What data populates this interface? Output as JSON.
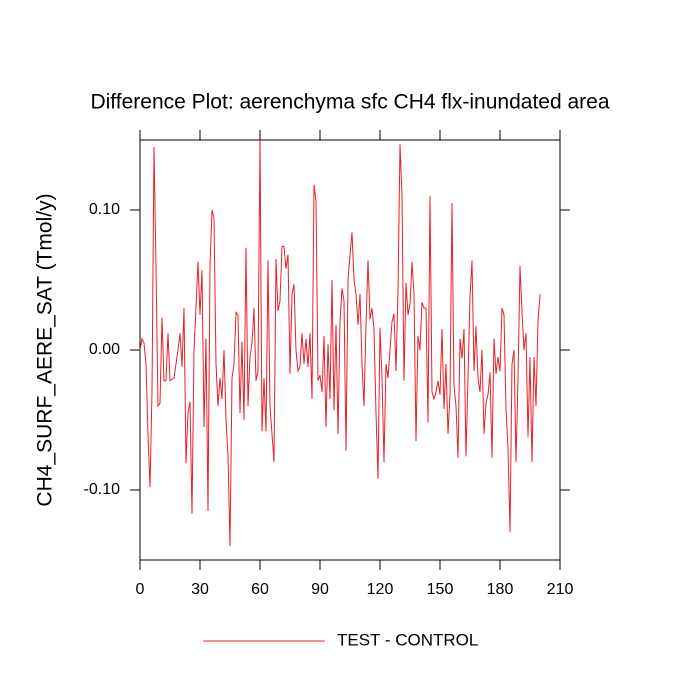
{
  "chart_data": {
    "type": "line",
    "title": "Difference Plot: aerenchyma sfc CH4 flx-inundated area",
    "y_label": "CH4_SURF_AERE_SAT  (Tmol/y)",
    "x": [
      0,
      1,
      2,
      3,
      4,
      5,
      6,
      7,
      8,
      9,
      10,
      11,
      12,
      13,
      14,
      15,
      16,
      17,
      18,
      19,
      20,
      21,
      22,
      23,
      24,
      25,
      26,
      27,
      28,
      29,
      30,
      31,
      32,
      33,
      34,
      35,
      36,
      37,
      38,
      39,
      40,
      41,
      42,
      43,
      44,
      45,
      46,
      47,
      48,
      49,
      50,
      51,
      52,
      53,
      54,
      55,
      56,
      57,
      58,
      59,
      60,
      61,
      62,
      63,
      64,
      65,
      66,
      67,
      68,
      69,
      70,
      71,
      72,
      73,
      74,
      75,
      76,
      77,
      78,
      79,
      80,
      81,
      82,
      83,
      84,
      85,
      86,
      87,
      88,
      89,
      90,
      91,
      92,
      93,
      94,
      95,
      96,
      97,
      98,
      99,
      100,
      101,
      102,
      103,
      104,
      105,
      106,
      107,
      108,
      109,
      110,
      111,
      112,
      113,
      114,
      115,
      116,
      117,
      118,
      119,
      120,
      121,
      122,
      123,
      124,
      125,
      126,
      127,
      128,
      129,
      130,
      131,
      132,
      133,
      134,
      135,
      136,
      137,
      138,
      139,
      140,
      141,
      142,
      143,
      144,
      145,
      146,
      147,
      148,
      149,
      150,
      151,
      152,
      153,
      154,
      155,
      156,
      157,
      158,
      159,
      160,
      161,
      162,
      163,
      164,
      165,
      166,
      167,
      168,
      169,
      170,
      171,
      172,
      173,
      174,
      175,
      176,
      177,
      178,
      179,
      180,
      181,
      182,
      183,
      184,
      185,
      186,
      187,
      188,
      189,
      190,
      191,
      192,
      193,
      194,
      195,
      196,
      197,
      198,
      199,
      200
    ],
    "series": [
      {
        "name": "TEST - CONTROL",
        "color": "#e8202a",
        "values": [
          0.0,
          0.008,
          0.005,
          -0.01,
          -0.06,
          -0.098,
          -0.03,
          0.145,
          0.06,
          -0.04,
          -0.038,
          0.023,
          -0.022,
          -0.022,
          0.012,
          -0.022,
          -0.021,
          -0.02,
          -0.01,
          0.0,
          0.012,
          -0.012,
          0.03,
          -0.081,
          -0.045,
          -0.037,
          -0.117,
          0.0,
          0.03,
          0.063,
          0.025,
          0.057,
          -0.055,
          0.008,
          -0.115,
          0.06,
          0.1,
          0.094,
          -0.01,
          -0.04,
          -0.02,
          -0.035,
          0.0,
          -0.05,
          -0.075,
          -0.14,
          -0.02,
          -0.01,
          0.027,
          0.025,
          -0.045,
          0.006,
          -0.05,
          0.073,
          -0.04,
          -0.005,
          0.005,
          0.03,
          -0.022,
          -0.015,
          0.15,
          -0.058,
          -0.02,
          -0.058,
          0.064,
          -0.04,
          -0.06,
          -0.08,
          0.065,
          0.028,
          0.035,
          0.074,
          0.074,
          0.058,
          0.068,
          -0.017,
          0.04,
          0.047,
          0.0,
          -0.015,
          -0.012,
          0.012,
          -0.01,
          0.008,
          -0.012,
          0.012,
          -0.035,
          0.118,
          0.106,
          -0.022,
          -0.018,
          -0.03,
          0.01,
          -0.055,
          0.004,
          -0.035,
          0.05,
          -0.043,
          0.018,
          -0.06,
          0.02,
          0.044,
          0.035,
          -0.072,
          0.05,
          0.068,
          0.084,
          0.05,
          0.04,
          0.018,
          0.04,
          -0.01,
          -0.04,
          0.018,
          0.064,
          0.022,
          0.03,
          0.015,
          -0.045,
          -0.092,
          0.016,
          -0.02,
          -0.08,
          -0.01,
          -0.02,
          0.0,
          0.02,
          0.026,
          -0.015,
          0.042,
          0.147,
          0.11,
          -0.022,
          0.048,
          0.025,
          0.033,
          0.063,
          0.04,
          -0.065,
          0.01,
          0.0,
          0.034,
          0.03,
          0.03,
          -0.052,
          0.11,
          -0.03,
          -0.035,
          -0.03,
          -0.022,
          -0.032,
          0.015,
          -0.042,
          -0.01,
          -0.06,
          -0.032,
          0.105,
          -0.025,
          -0.04,
          -0.077,
          0.008,
          -0.006,
          0.015,
          -0.076,
          -0.02,
          0.038,
          0.064,
          -0.015,
          0.017,
          -0.02,
          -0.03,
          0.0,
          -0.06,
          -0.038,
          -0.032,
          -0.016,
          -0.077,
          0.008,
          -0.017,
          -0.005,
          -0.015,
          0.03,
          0.025,
          -0.042,
          -0.07,
          -0.13,
          -0.01,
          0.0,
          -0.08,
          -0.02,
          0.06,
          0.027,
          0.0,
          0.012,
          -0.062,
          -0.005,
          -0.08,
          -0.005,
          -0.04,
          0.02,
          0.04
        ]
      }
    ],
    "xlim": [
      0,
      210
    ],
    "xticks": [
      0,
      30,
      60,
      90,
      120,
      150,
      180,
      210
    ],
    "ylim": [
      -0.15,
      0.15
    ],
    "yticks": [
      {
        "value": -0.1,
        "label": "-0.10"
      },
      {
        "value": 0,
        "label": "0.00"
      },
      {
        "value": 0.1,
        "label": "0.10"
      }
    ],
    "legend": "bottom"
  }
}
